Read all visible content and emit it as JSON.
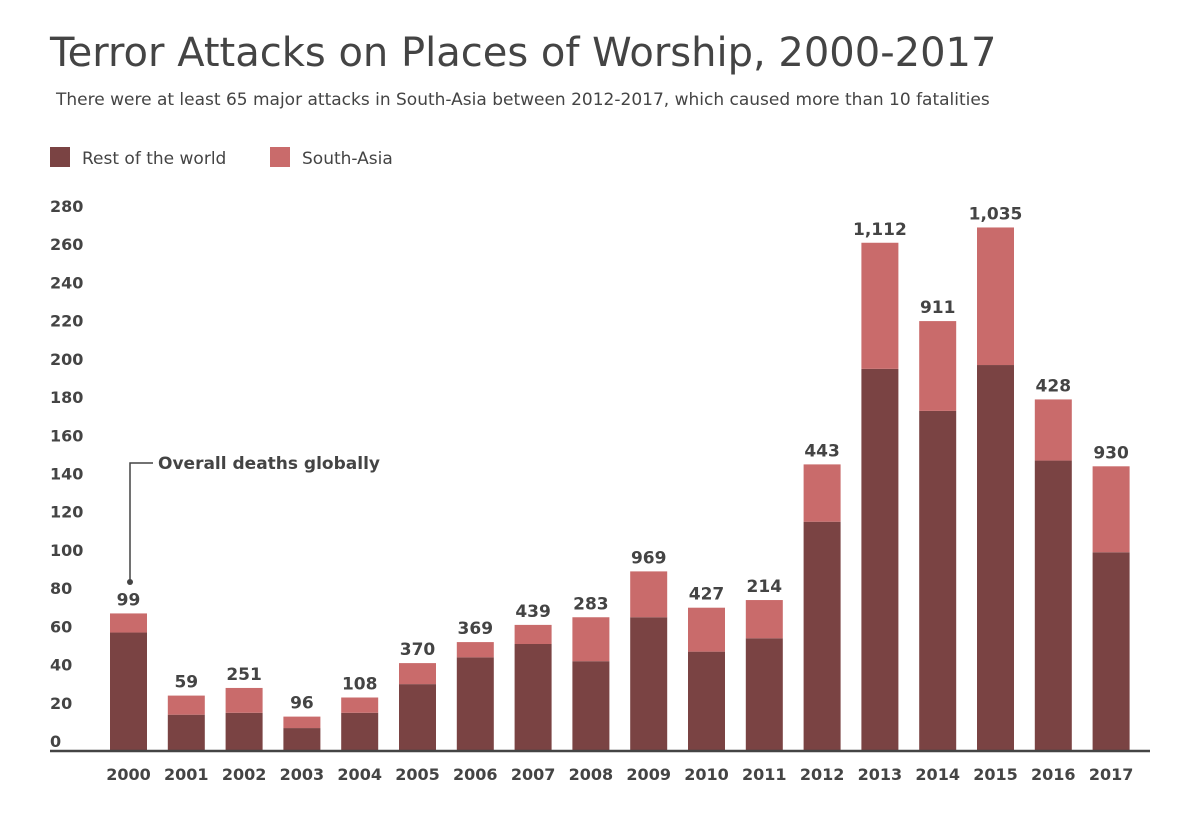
{
  "chart_data": {
    "type": "stacked_bar",
    "title": "Terror Attacks on Places of Worship, 2000-2017",
    "subtitle": "There were at least 65 major attacks in South-Asia between 2012-2017, which caused more than 10 fatalities",
    "categories": [
      "2000",
      "2001",
      "2002",
      "2003",
      "2004",
      "2005",
      "2006",
      "2007",
      "2008",
      "2009",
      "2010",
      "2011",
      "2012",
      "2013",
      "2014",
      "2015",
      "2016",
      "2017"
    ],
    "series": [
      {
        "name": "Rest of the world",
        "color": "#7a4343",
        "values": [
          62,
          19,
          20,
          12,
          20,
          35,
          49,
          56,
          47,
          70,
          52,
          59,
          120,
          200,
          178,
          202,
          152,
          104
        ]
      },
      {
        "name": "South-Asia",
        "color": "#c96b6b",
        "values": [
          10,
          10,
          13,
          6,
          8,
          11,
          8,
          10,
          23,
          24,
          23,
          20,
          30,
          66,
          47,
          72,
          32,
          45
        ]
      }
    ],
    "overall_deaths": {
      "name": "Overall deaths globally",
      "values": [
        99,
        59,
        251,
        96,
        108,
        370,
        369,
        439,
        283,
        969,
        427,
        214,
        443,
        1112,
        911,
        1035,
        428,
        930
      ],
      "value_labels": [
        "99",
        "59",
        "251",
        "96",
        "108",
        "370",
        "369",
        "439",
        "283",
        "969",
        "427",
        "214",
        "443",
        "1,112",
        "911",
        "1,035",
        "428",
        "930"
      ]
    },
    "ylim": [
      0,
      280
    ],
    "yticks": [
      0,
      20,
      40,
      60,
      80,
      100,
      120,
      140,
      160,
      180,
      200,
      220,
      240,
      260,
      280
    ],
    "grid": false,
    "legend": "top-left"
  }
}
